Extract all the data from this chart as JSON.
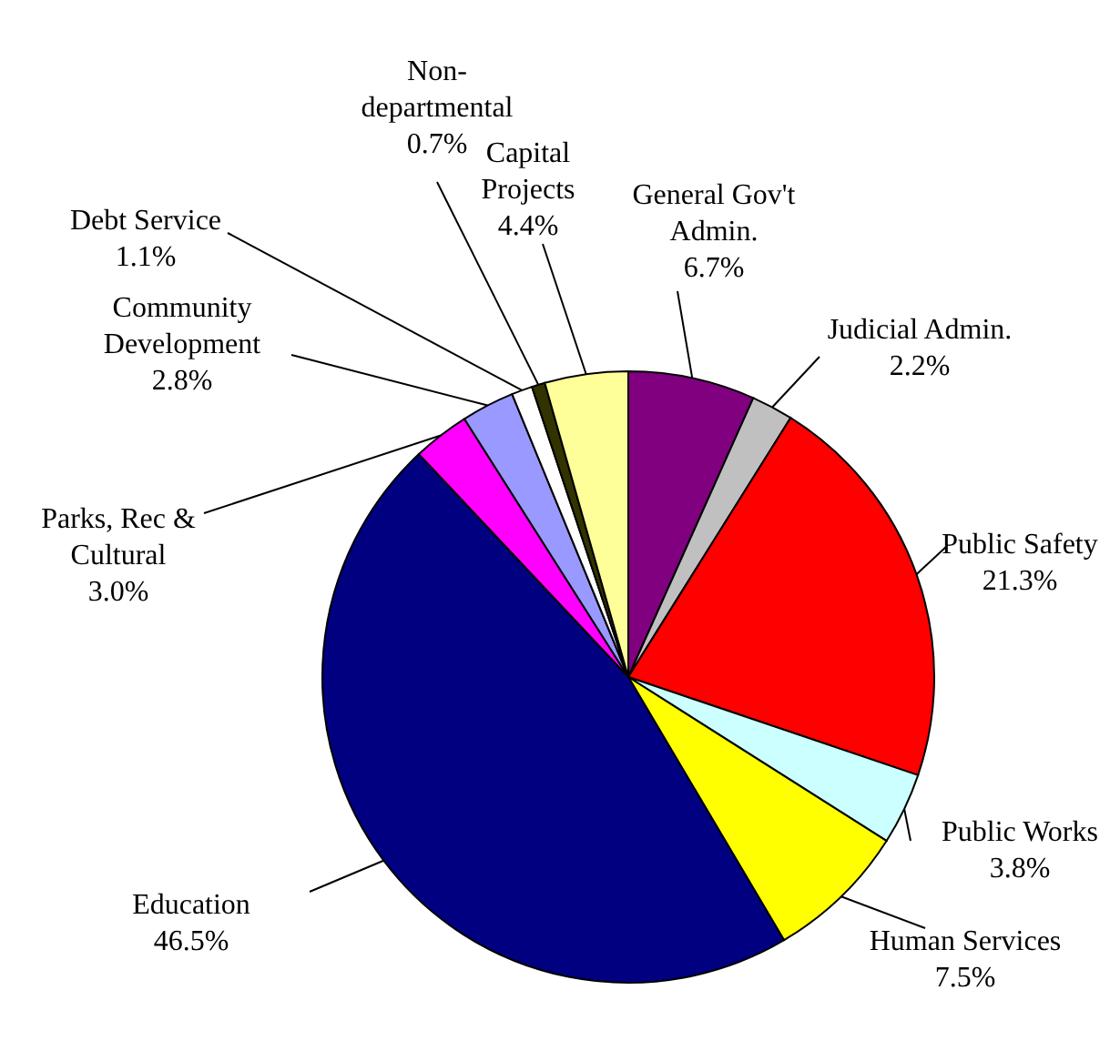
{
  "chart_data": {
    "type": "pie",
    "categories": [
      "General Gov't Admin.",
      "Judicial Admin.",
      "Public Safety",
      "Public Works",
      "Human Services",
      "Education",
      "Parks, Rec & Cultural",
      "Community Development",
      "Debt Service",
      "Non-departmental",
      "Capital Projects"
    ],
    "values": [
      6.7,
      2.2,
      21.3,
      3.8,
      7.5,
      46.5,
      3.0,
      2.8,
      1.1,
      0.7,
      4.4
    ],
    "value_labels": [
      "6.7%",
      "2.2%",
      "21.3%",
      "3.8%",
      "7.5%",
      "46.5%",
      "3.0%",
      "2.8%",
      "1.1%",
      "0.7%",
      "4.4%"
    ],
    "colors": [
      "#800080",
      "#c0c0c0",
      "#ff0000",
      "#ccffff",
      "#ffff00",
      "#000080",
      "#ff00ff",
      "#9999ff",
      "#ffffff",
      "#333300",
      "#ffff99"
    ],
    "legend": false
  }
}
